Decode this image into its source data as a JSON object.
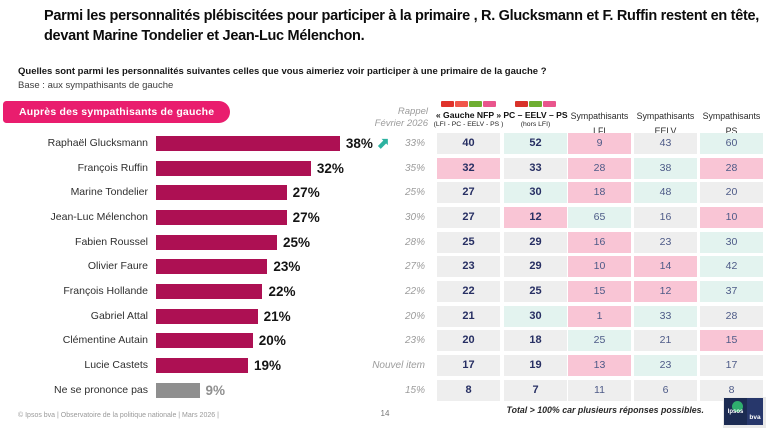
{
  "header": {
    "title": "Parmi les personnalités plébiscitées pour participer à la primaire , R. Glucksmann et F. Ruffin restent en tête, devant Marine Tondelier et Jean-Luc Mélenchon.",
    "question": "Quelles sont parmi les personnalités suivantes celles que vous aimeriez voir participer à une primaire de la gauche ?",
    "base": "Base : aux sympathisants de gauche"
  },
  "badge": {
    "label": "Auprès des sympathisants de gauche",
    "color": "#e91d6e"
  },
  "chart_data": {
    "type": "bar",
    "orientation": "horizontal",
    "title": "Auprès des sympathisants de gauche",
    "unit": "%",
    "xlim": [
      0,
      40
    ],
    "categories": [
      "Raphaël Glucksmann",
      "François Ruffin",
      "Marine Tondelier",
      "Jean-Luc Mélenchon",
      "Fabien Roussel",
      "Olivier Faure",
      "François Hollande",
      "Gabriel Attal",
      "Clémentine Autain",
      "Lucie Castets",
      "Ne se prononce pas"
    ],
    "values": [
      38,
      32,
      27,
      27,
      25,
      23,
      22,
      21,
      20,
      19,
      9
    ],
    "bar_color": "#ad1053",
    "muted_category": "Ne se prononce pas",
    "muted_color": "#8f8f8f",
    "annotations": [
      {
        "row": 0,
        "marker": "trend-up-arrow",
        "color": "#2cb2a0"
      }
    ]
  },
  "table": {
    "rappel": {
      "header_line1": "Rappel",
      "header_line2": "Février 2026",
      "values": [
        "33%",
        "35%",
        "25%",
        "30%",
        "28%",
        "27%",
        "22%",
        "20%",
        "23%",
        "Nouvel item",
        "15%"
      ]
    },
    "highlight_colors": {
      "grey": "#eeeeee",
      "pink": "#f9c5d5",
      "cyan": "#e3f3ef"
    },
    "columns": [
      {
        "label": "« Gauche NFP »",
        "sublabel": "(LFI - PC - EELV - PS )",
        "bold": true,
        "logos": [
          {
            "name": "lfi-logo",
            "color": "#e0332b"
          },
          {
            "name": "fi-phi-logo",
            "color": "#f1574b"
          },
          {
            "name": "ecologistes-logo",
            "color": "#6fae32"
          },
          {
            "name": "ps-logo",
            "color": "#e9558c"
          }
        ],
        "values": [
          40,
          32,
          27,
          27,
          25,
          23,
          22,
          21,
          20,
          17,
          8
        ],
        "styles": [
          "g",
          "p",
          "g",
          "g",
          "g",
          "g",
          "g",
          "g",
          "g",
          "g",
          "g"
        ]
      },
      {
        "label": "PC – EELV – PS",
        "sublabel": "(hors LFI)",
        "bold": true,
        "logos": [
          {
            "name": "pcf-logo",
            "color": "#d8322a"
          },
          {
            "name": "ecologistes-logo",
            "color": "#6fae32"
          },
          {
            "name": "ps-logo",
            "color": "#e9558c"
          }
        ],
        "values": [
          52,
          33,
          30,
          12,
          29,
          29,
          25,
          30,
          18,
          19,
          7
        ],
        "styles": [
          "c",
          "g",
          "c",
          "p",
          "g",
          "g",
          "g",
          "c",
          "g",
          "g",
          "g"
        ]
      },
      {
        "label": "Sympathisants",
        "sublabel": "LFI",
        "bold": false,
        "logos": [],
        "values": [
          9,
          28,
          18,
          65,
          16,
          10,
          15,
          1,
          25,
          13,
          11
        ],
        "styles": [
          "p",
          "p",
          "p",
          "c",
          "p",
          "p",
          "p",
          "p",
          "c",
          "p",
          "g"
        ]
      },
      {
        "label": "Sympathisants",
        "sublabel": "EELV",
        "bold": false,
        "logos": [],
        "values": [
          43,
          38,
          48,
          16,
          23,
          14,
          12,
          33,
          21,
          23,
          6
        ],
        "styles": [
          "g",
          "c",
          "c",
          "g",
          "g",
          "p",
          "p",
          "c",
          "g",
          "c",
          "g"
        ]
      },
      {
        "label": "Sympathisants",
        "sublabel": "PS",
        "bold": false,
        "logos": [],
        "values": [
          60,
          28,
          20,
          10,
          30,
          42,
          37,
          28,
          15,
          17,
          8
        ],
        "styles": [
          "c",
          "p",
          "g",
          "p",
          "c",
          "c",
          "c",
          "g",
          "p",
          "g",
          "g"
        ]
      }
    ]
  },
  "footer": {
    "copyright": "© Ipsos bva | Observatoire de la politique nationale | Mars 2026 |",
    "page": "14",
    "note": "Total > 100% car plusieurs réponses possibles.",
    "logo_ipsos": "Ipsos",
    "logo_bva": "bva"
  }
}
